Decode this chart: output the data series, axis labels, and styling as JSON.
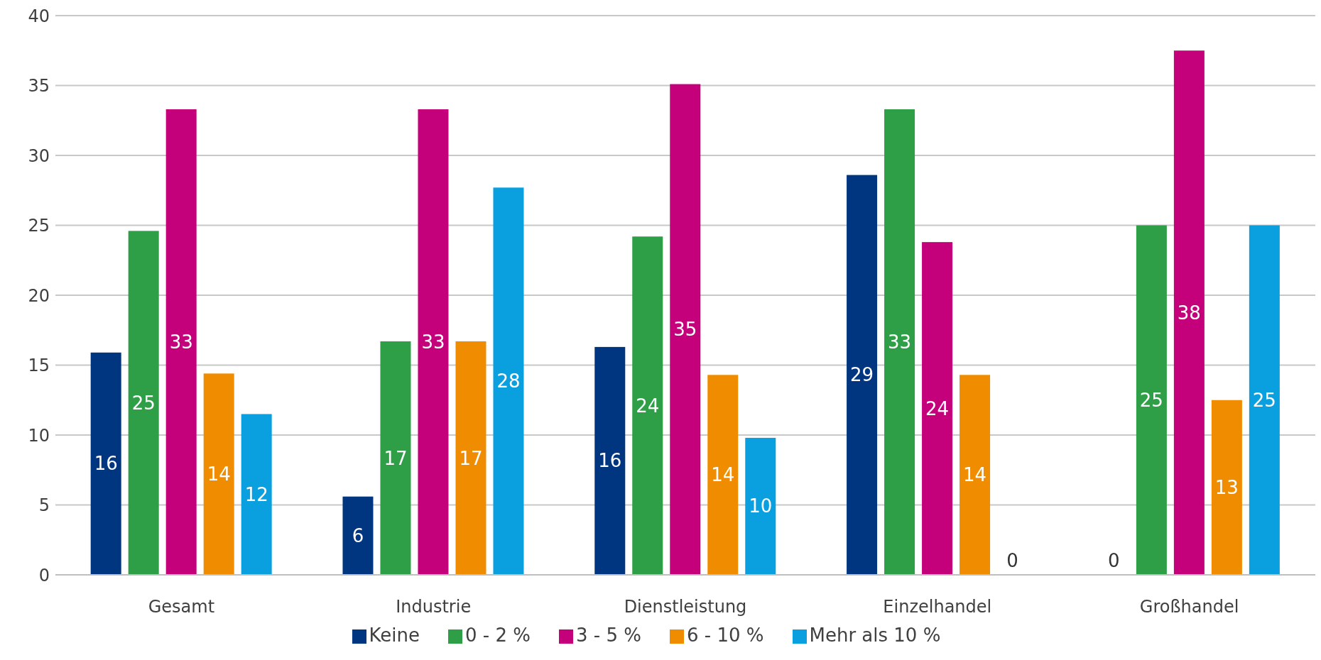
{
  "chart_data": {
    "type": "bar",
    "categories": [
      "Gesamt",
      "Industrie",
      "Dienstleistung",
      "Einzelhandel",
      "Großhandel"
    ],
    "series": [
      {
        "name": "Keine",
        "color": "#003580",
        "values": [
          15.9,
          5.6,
          16.3,
          28.6,
          0
        ],
        "value_labels": [
          "16",
          "6",
          "16",
          "29",
          "0"
        ]
      },
      {
        "name": "0 - 2 %",
        "color": "#2e9e47",
        "values": [
          24.6,
          16.7,
          24.2,
          33.3,
          25
        ],
        "value_labels": [
          "25",
          "17",
          "24",
          "33",
          "25"
        ]
      },
      {
        "name": "3 - 5 %",
        "color": "#c4007a",
        "values": [
          33.3,
          33.3,
          35.1,
          23.8,
          37.5
        ],
        "value_labels": [
          "33",
          "33",
          "35",
          "24",
          "38"
        ]
      },
      {
        "name": "6 - 10 %",
        "color": "#f08c00",
        "values": [
          14.4,
          16.7,
          14.3,
          14.3,
          12.5
        ],
        "value_labels": [
          "14",
          "17",
          "14",
          "14",
          "13"
        ]
      },
      {
        "name": "Mehr als 10 %",
        "color": "#0aa0e0",
        "values": [
          11.5,
          27.7,
          9.8,
          0,
          25
        ],
        "value_labels": [
          "12",
          "28",
          "10",
          "0",
          "25"
        ]
      }
    ],
    "ylim": [
      0,
      40
    ],
    "yticks": [
      0,
      5,
      10,
      15,
      20,
      25,
      30,
      35,
      40
    ],
    "grid": "y",
    "legend": "bottom"
  }
}
